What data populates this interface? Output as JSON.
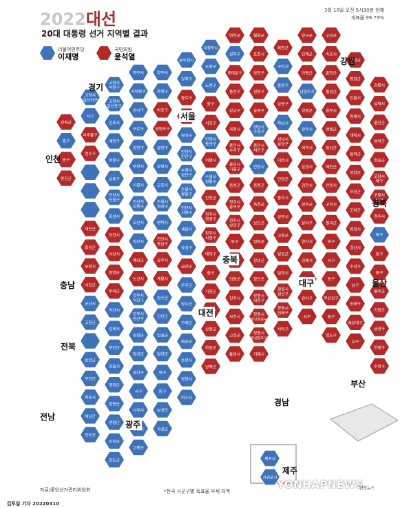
{
  "header": {
    "year": "2022",
    "title_suffix": "대선",
    "subtitle": "20대 대통령 선거 지역별 결과",
    "status_time": "3월 10일 오전 5시30분 현재",
    "status_rate": "개표율 99.79%"
  },
  "legend": [
    {
      "party": "더불어민주당",
      "candidate": "이재명",
      "color": "#3f72b8"
    },
    {
      "party": "국민의힘",
      "candidate": "윤석열",
      "color": "#b22a2a"
    }
  ],
  "regions": [
    "강원",
    "경기",
    "서울",
    "인천",
    "경북",
    "충북",
    "충남",
    "울산",
    "대구",
    "대전",
    "전북",
    "부산",
    "경남",
    "전남",
    "광주",
    "제주"
  ],
  "footer": {
    "source": "자료/중앙선거관리위원회",
    "note": "*전국 시군구별 득표율 우세 지역",
    "credit": "김토일 기자 20220310",
    "watermark": "YONHAPNEWS",
    "agency": "연합뉴스"
  },
  "map_data": {
    "colors": {
      "blue": "#3f72b8",
      "red": "#b22a2a"
    },
    "columns": [
      {
        "cells": [
          [
            "강화군",
            "R"
          ],
          [
            "중구",
            "B"
          ],
          [
            "동구",
            "R"
          ],
          [
            "옹진군",
            "R"
          ]
        ]
      },
      {
        "cells": [
          [
            "고양시\n일산서구",
            "B"
          ],
          [
            "서구",
            "B"
          ],
          [
            "미추홀구",
            "R"
          ],
          [
            "연수구",
            "R"
          ],
          [
            "",
            "B"
          ],
          [
            "",
            "B"
          ],
          [
            "",
            "B"
          ],
          [
            "태안군",
            "R"
          ],
          [
            "홍성군",
            "R"
          ],
          [
            "보령시",
            "R"
          ],
          [
            "서천군",
            "R"
          ],
          [
            "군산시",
            "B"
          ],
          [
            "고창군",
            "B"
          ],
          [
            "",
            "B"
          ],
          [
            "신안군",
            "B"
          ],
          [
            "무안군",
            "B"
          ],
          [
            "목포시",
            "B"
          ],
          [
            "해남군",
            "B"
          ],
          [
            "진도군",
            "B"
          ]
        ]
      },
      {
        "cells": [
          [
            "고양시\n덕양구",
            "B"
          ],
          [
            "고양시\n일산동구",
            "B"
          ],
          [
            "김포시",
            "B"
          ],
          [
            "계양구",
            "B"
          ],
          [
            "부평구",
            "B"
          ],
          [
            "남동구",
            "B"
          ],
          [
            "안산시\n단원구",
            "B"
          ],
          [
            "화성시",
            "B"
          ],
          [
            "당진시",
            "R"
          ],
          [
            "서산시",
            "R"
          ],
          [
            "청양군",
            "R"
          ],
          [
            "부여군",
            "R"
          ],
          [
            "익산시",
            "B"
          ],
          [
            "김제시",
            "B"
          ],
          [
            "부안군",
            "B"
          ],
          [
            "정읍시",
            "B"
          ],
          [
            "영광군",
            "B"
          ],
          [
            "함평군",
            "B"
          ],
          [
            "영암군",
            "B"
          ],
          [
            "강진군",
            "B"
          ],
          [
            "완도군",
            "B"
          ]
        ]
      },
      {
        "cells": [
          [
            "파주시",
            "B"
          ],
          [
            "서대문구",
            "B"
          ],
          [
            "강서구",
            "B"
          ],
          [
            "구로구",
            "B"
          ],
          [
            "양천구",
            "B"
          ],
          [
            "부천시",
            "B"
          ],
          [
            "시흥시",
            "B"
          ],
          [
            "안산시\n상록구",
            "B"
          ],
          [
            "오산시",
            "B"
          ],
          [
            "아산시",
            "B"
          ],
          [
            "예산군",
            "R"
          ],
          [
            "논산시",
            "R"
          ],
          [
            "전주시\n덕진구",
            "B"
          ],
          [
            "전주시\n완산구",
            "B"
          ],
          [
            "순창군",
            "B"
          ],
          [
            "장성군",
            "B"
          ],
          [
            "광산구",
            "B"
          ],
          [
            "서구",
            "B"
          ],
          [
            "나주시",
            "B"
          ],
          [
            "장흥군",
            "B"
          ],
          [
            "고흥군",
            "B"
          ]
        ]
      },
      {
        "cells": [
          [
            "양주시",
            "B"
          ],
          [
            "은평구",
            "B"
          ],
          [
            "마포구",
            "R"
          ],
          [
            "영등포구",
            "R"
          ],
          [
            "금천구",
            "B"
          ],
          [
            "광명시",
            "B"
          ],
          [
            "군포시",
            "B"
          ],
          [
            "수원시\n권선구",
            "B"
          ],
          [
            "평택시",
            "B"
          ],
          [
            "천안시\n동남구",
            "R"
          ],
          [
            "공주시",
            "R"
          ],
          [
            "계룡시",
            "R"
          ],
          [
            "완주군",
            "B"
          ],
          [
            "진안군",
            "B"
          ],
          [
            "임실군",
            "B"
          ],
          [
            "담양군",
            "B"
          ],
          [
            "북구",
            "B"
          ],
          [
            "동구",
            "B"
          ],
          [
            "보성군",
            "B"
          ],
          [
            "곡성군",
            "B"
          ]
        ]
      },
      {
        "cells": [
          [
            "동두천시",
            "B"
          ],
          [
            "강북구",
            "B"
          ],
          [
            "종로구",
            "R"
          ],
          [
            "동작구",
            "R"
          ],
          [
            "관악구",
            "B"
          ],
          [
            "안양시\n만안구",
            "B"
          ],
          [
            "수원시\n장안구",
            "B"
          ],
          [
            "수원시\n팔달구",
            "B"
          ],
          [
            "천안시\n서북구",
            "B"
          ],
          [
            "세종시",
            "B"
          ],
          [
            "유성구",
            "B"
          ],
          [
            "금산군",
            "R"
          ],
          [
            "무주군",
            "B"
          ],
          [
            "장수군",
            "B"
          ],
          [
            "구례군",
            "B"
          ],
          [
            "화순군",
            "B"
          ],
          [
            "순천시",
            "B"
          ],
          [
            "광양시",
            "B"
          ],
          [
            "여수시",
            "B"
          ]
        ]
      },
      {
        "cells": [
          [
            "의정부시",
            "B"
          ],
          [
            "도봉구",
            "B"
          ],
          [
            "노원구",
            "B"
          ],
          [
            "중구",
            "R"
          ],
          [
            "서초구",
            "R"
          ],
          [
            "안양시\n동안구",
            "B"
          ],
          [
            "의왕시",
            "R"
          ],
          [
            "수원시\n영통구",
            "B"
          ],
          [
            "진천군",
            "R"
          ],
          [
            "청주시\n청원구",
            "R"
          ],
          [
            "청주시\n서원구",
            "R"
          ],
          [
            "대덕구",
            "R"
          ],
          [
            "중구",
            "R"
          ],
          [
            "거창군",
            "R"
          ],
          [
            "함양군",
            "R"
          ],
          [
            "산청군",
            "R"
          ],
          [
            "하동군",
            "R"
          ],
          [
            "남해군",
            "R"
          ]
        ]
      },
      {
        "cells": [
          [
            "연천군",
            "R"
          ],
          [
            "성북구",
            "B"
          ],
          [
            "동대문구",
            "R"
          ],
          [
            "용산구",
            "R"
          ],
          [
            "강남구",
            "R"
          ],
          [
            "과천시",
            "R"
          ],
          [
            "용인시\n수지구",
            "R"
          ],
          [
            "용인시\n기흥구",
            "R"
          ],
          [
            "음성군",
            "R"
          ],
          [
            "청주시\n흥덕구",
            "R"
          ],
          [
            "청주시\n상당구",
            "R"
          ],
          [
            "동구",
            "R"
          ],
          [
            "합천군",
            "R"
          ],
          [
            "의령군",
            "R"
          ],
          [
            "진주시",
            "R"
          ],
          [
            "사천시",
            "R"
          ],
          [
            "고성군",
            "R"
          ],
          [
            "통영시",
            "R"
          ]
        ]
      },
      {
        "cells": [
          [
            "철원군",
            "R"
          ],
          [
            "포천시",
            "R"
          ],
          [
            "광진구",
            "R"
          ],
          [
            "성동구",
            "R"
          ],
          [
            "송파구",
            "R"
          ],
          [
            "성남시\n수정구",
            "B"
          ],
          [
            "용인시\n처인구",
            "R"
          ],
          [
            "안성시",
            "B"
          ],
          [
            "증평군",
            "R"
          ],
          [
            "옥천군",
            "R"
          ],
          [
            "보은군",
            "R"
          ],
          [
            "영동군",
            "R"
          ],
          [
            "창녕군",
            "R"
          ],
          [
            "함안군",
            "R"
          ],
          [
            "창원시\n의창구",
            "R"
          ],
          [
            "창원시\n마산회원구",
            "R"
          ],
          [
            "창원시\n마산합포구",
            "R"
          ],
          [
            "거제시",
            "R"
          ]
        ]
      },
      {
        "cells": [
          [
            "화천군",
            "R"
          ],
          [
            "구리시",
            "B"
          ],
          [
            "중랑구",
            "B"
          ],
          [
            "강동구",
            "R"
          ],
          [
            "하남시",
            "B"
          ],
          [
            "성남시\n분당구",
            "R"
          ],
          [
            "이천시",
            "R"
          ],
          [
            "단양군",
            "R"
          ],
          [
            "충주시",
            "R"
          ],
          [
            "상주시",
            "R"
          ],
          [
            "고령군",
            "R"
          ],
          [
            "달성군",
            "R"
          ],
          [
            "밀양시",
            "R"
          ],
          [
            "창원시\n성산구",
            "R"
          ],
          [
            "창원시\n진해구",
            "R"
          ],
          [
            "사하구",
            "R"
          ]
        ]
      },
      {
        "cells": [
          [
            "양구군",
            "R"
          ],
          [
            "인제군",
            "R"
          ],
          [
            "가평군",
            "R"
          ],
          [
            "남양주시",
            "B"
          ],
          [
            "양평군",
            "R"
          ],
          [
            "광주시",
            "B"
          ],
          [
            "여주시",
            "R"
          ],
          [
            "문경시",
            "R"
          ],
          [
            "김천시",
            "R"
          ],
          [
            "성주군",
            "R"
          ],
          [
            "달서구",
            "R"
          ],
          [
            "양산시",
            "R"
          ],
          [
            "김해시",
            "R"
          ],
          [
            "사상구",
            "R"
          ],
          [
            "강서구",
            "R"
          ],
          [
            "서구",
            "R"
          ]
        ]
      },
      {
        "cells": [
          [
            "고성군",
            "R"
          ],
          [
            "속초시",
            "R"
          ],
          [
            "홍천군",
            "R"
          ],
          [
            "횡성군",
            "R"
          ],
          [
            "원주시",
            "R"
          ],
          [
            "영월군",
            "R"
          ],
          [
            "정선군",
            "R"
          ],
          [
            "예천군",
            "R"
          ],
          [
            "안동시",
            "R"
          ],
          [
            "구미시",
            "R"
          ],
          [
            "칠곡군",
            "R"
          ],
          [
            "북구",
            "R"
          ],
          [
            "서구",
            "R"
          ],
          [
            "동구",
            "R"
          ],
          [
            "부산진구",
            "R"
          ],
          [
            "중구",
            "R"
          ],
          [
            "영도구",
            "R"
          ]
        ]
      },
      {
        "cells": [
          [
            "양양군",
            "R"
          ],
          [
            "평창군",
            "R"
          ],
          [
            "강릉시",
            "R"
          ],
          [
            "동해시",
            "R"
          ],
          [
            "태백시",
            "R"
          ],
          [
            "봉화군",
            "R"
          ],
          [
            "영양군",
            "R"
          ],
          [
            "의성군",
            "R"
          ],
          [
            "군위군",
            "R"
          ],
          [
            "영천시",
            "R"
          ],
          [
            "경산시",
            "R"
          ],
          [
            "수성구",
            "R"
          ],
          [
            "남구",
            "R"
          ],
          [
            "동래구",
            "R"
          ],
          [
            "해운대구",
            "R"
          ],
          [
            "남구",
            "R"
          ]
        ]
      },
      {
        "cells": [
          [
            "강릉시",
            "R"
          ],
          [
            "삼척시",
            "R"
          ],
          [
            "울진군",
            "R"
          ],
          [
            "영덕군",
            "R"
          ],
          [
            "청송군",
            "R"
          ],
          [
            "포항시\n북구",
            "R"
          ],
          [
            "포항시\n남구",
            "R"
          ],
          [
            "경주시",
            "R"
          ],
          [
            "북구",
            "B"
          ],
          [
            "동구",
            "R"
          ],
          [
            "중구",
            "R"
          ],
          [
            "울주군",
            "R"
          ],
          [
            "기장군",
            "R"
          ],
          [
            "금정구",
            "R"
          ],
          [
            "연제구",
            "R"
          ],
          [
            "수영구",
            "R"
          ]
        ]
      }
    ],
    "jeju": [
      [
        "제주시",
        "B"
      ],
      [
        "서귀포시",
        "B"
      ]
    ]
  }
}
